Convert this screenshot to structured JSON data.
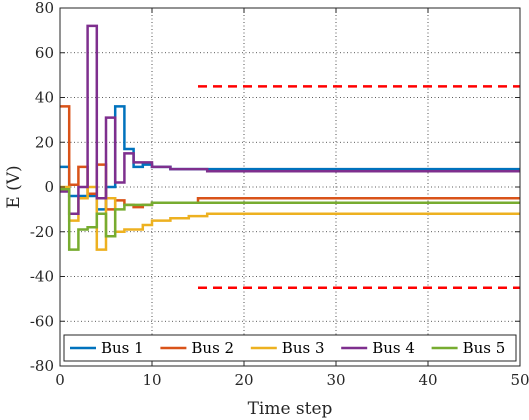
{
  "chart_data": {
    "type": "line",
    "step": true,
    "xlabel": "Time step",
    "ylabel": "E (V)",
    "xlim": [
      0,
      50
    ],
    "ylim": [
      -80,
      80
    ],
    "xticks": [
      0,
      10,
      20,
      30,
      40,
      50
    ],
    "yticks": [
      -80,
      -60,
      -40,
      -20,
      0,
      20,
      40,
      60,
      80
    ],
    "grid": true,
    "legend_position": "bottom",
    "series": [
      {
        "name": "Bus 1",
        "color": "#0072BD",
        "points": [
          [
            0,
            9
          ],
          [
            1,
            -4
          ],
          [
            2,
            -4
          ],
          [
            3,
            -4
          ],
          [
            4,
            -10
          ],
          [
            5,
            0
          ],
          [
            6,
            36
          ],
          [
            7,
            17
          ],
          [
            8,
            9
          ],
          [
            9,
            10
          ],
          [
            10,
            9
          ],
          [
            12,
            8
          ],
          [
            14,
            8
          ],
          [
            16,
            8
          ],
          [
            18,
            8
          ],
          [
            20,
            8
          ],
          [
            30,
            8
          ],
          [
            40,
            8
          ],
          [
            50,
            8
          ]
        ]
      },
      {
        "name": "Bus 2",
        "color": "#D95319",
        "points": [
          [
            0,
            36
          ],
          [
            1,
            1
          ],
          [
            2,
            9
          ],
          [
            3,
            -3
          ],
          [
            4,
            10
          ],
          [
            5,
            -10
          ],
          [
            6,
            -6
          ],
          [
            7,
            -8
          ],
          [
            8,
            -9
          ],
          [
            9,
            -8
          ],
          [
            10,
            -7
          ],
          [
            12,
            -7
          ],
          [
            14,
            -7
          ],
          [
            15,
            -5
          ],
          [
            16,
            -5
          ],
          [
            18,
            -5
          ],
          [
            20,
            -5
          ],
          [
            30,
            -5
          ],
          [
            40,
            -5
          ],
          [
            50,
            -5
          ]
        ]
      },
      {
        "name": "Bus 3",
        "color": "#EDB120",
        "points": [
          [
            0,
            0
          ],
          [
            1,
            -15
          ],
          [
            2,
            -5
          ],
          [
            3,
            0
          ],
          [
            4,
            -28
          ],
          [
            5,
            -5
          ],
          [
            6,
            -20
          ],
          [
            7,
            -19
          ],
          [
            8,
            -19
          ],
          [
            9,
            -17
          ],
          [
            10,
            -15
          ],
          [
            12,
            -14
          ],
          [
            14,
            -13
          ],
          [
            16,
            -12
          ],
          [
            18,
            -12
          ],
          [
            20,
            -12
          ],
          [
            30,
            -12
          ],
          [
            40,
            -12
          ],
          [
            50,
            -12
          ]
        ]
      },
      {
        "name": "Bus 4",
        "color": "#7E2F8E",
        "points": [
          [
            0,
            -2
          ],
          [
            1,
            -12
          ],
          [
            2,
            0
          ],
          [
            3,
            72
          ],
          [
            4,
            -5
          ],
          [
            5,
            31
          ],
          [
            6,
            2
          ],
          [
            7,
            15
          ],
          [
            8,
            11
          ],
          [
            9,
            11
          ],
          [
            10,
            9
          ],
          [
            12,
            8
          ],
          [
            14,
            8
          ],
          [
            16,
            7
          ],
          [
            18,
            7
          ],
          [
            20,
            7
          ],
          [
            30,
            7
          ],
          [
            40,
            7
          ],
          [
            50,
            7
          ]
        ]
      },
      {
        "name": "Bus 5",
        "color": "#77AC30",
        "points": [
          [
            0,
            -1
          ],
          [
            1,
            -28
          ],
          [
            2,
            -19
          ],
          [
            3,
            -18
          ],
          [
            4,
            -12
          ],
          [
            5,
            -22
          ],
          [
            6,
            -10
          ],
          [
            7,
            -8
          ],
          [
            8,
            -8
          ],
          [
            9,
            -8
          ],
          [
            10,
            -7
          ],
          [
            12,
            -7
          ],
          [
            14,
            -7
          ],
          [
            16,
            -7
          ],
          [
            18,
            -7
          ],
          [
            20,
            -7
          ],
          [
            30,
            -7
          ],
          [
            40,
            -7
          ],
          [
            50,
            -7
          ]
        ]
      }
    ],
    "reference_lines": [
      {
        "y": 45,
        "x_start": 15,
        "x_end": 50,
        "color": "#FF0000",
        "style": "dashed"
      },
      {
        "y": -45,
        "x_start": 15,
        "x_end": 50,
        "color": "#FF0000",
        "style": "dashed"
      }
    ]
  }
}
